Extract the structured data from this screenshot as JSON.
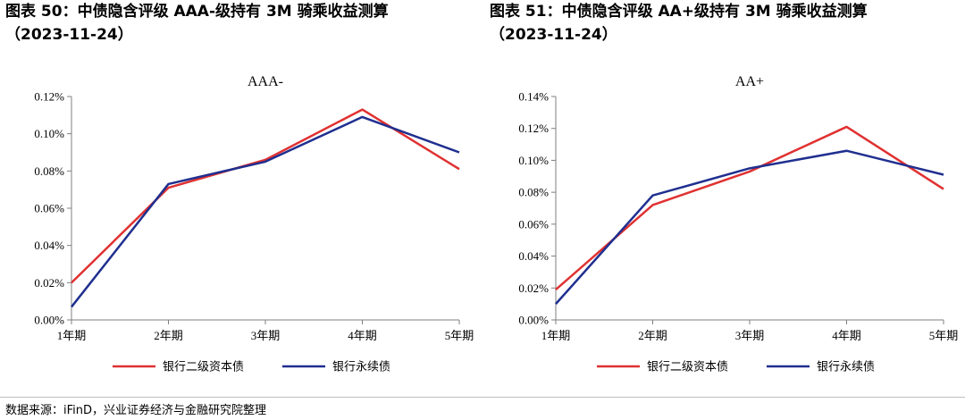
{
  "panels": [
    {
      "title_line1": "图表 50：中债隐含评级 AAA-级持有 3M 骑乘收益测算",
      "title_line2": "（2023-11-24）"
    },
    {
      "title_line1": "图表 51：中债隐含评级 AA+级持有 3M 骑乘收益测算",
      "title_line2": "（2023-11-24）"
    }
  ],
  "source": "数据来源：iFinD，兴业证券经济与金融研究院整理",
  "chart_data": [
    {
      "type": "line",
      "title": "AAA-",
      "categories": [
        "1年期",
        "2年期",
        "3年期",
        "4年期",
        "5年期"
      ],
      "series": [
        {
          "name": "银行二级资本债",
          "color": "#e03131",
          "values": [
            0.02,
            0.071,
            0.086,
            0.113,
            0.081
          ]
        },
        {
          "name": "银行永续债",
          "color": "#1f2f8f",
          "values": [
            0.007,
            0.073,
            0.085,
            0.109,
            0.09
          ]
        }
      ],
      "ylim": [
        0,
        0.12
      ],
      "yticks": [
        "0.00%",
        "0.02%",
        "0.04%",
        "0.06%",
        "0.08%",
        "0.10%",
        "0.12%"
      ],
      "ystep": 0.02,
      "legend": "bottom"
    },
    {
      "type": "line",
      "title": "AA+",
      "categories": [
        "1年期",
        "2年期",
        "3年期",
        "4年期",
        "5年期"
      ],
      "series": [
        {
          "name": "银行二级资本债",
          "color": "#e03131",
          "values": [
            0.019,
            0.072,
            0.093,
            0.121,
            0.082
          ]
        },
        {
          "name": "银行永续债",
          "color": "#1f2f8f",
          "values": [
            0.01,
            0.078,
            0.095,
            0.106,
            0.091
          ]
        }
      ],
      "ylim": [
        0,
        0.14
      ],
      "yticks": [
        "0.00%",
        "0.02%",
        "0.04%",
        "0.06%",
        "0.08%",
        "0.10%",
        "0.12%",
        "0.14%"
      ],
      "ystep": 0.02,
      "legend": "bottom"
    }
  ]
}
